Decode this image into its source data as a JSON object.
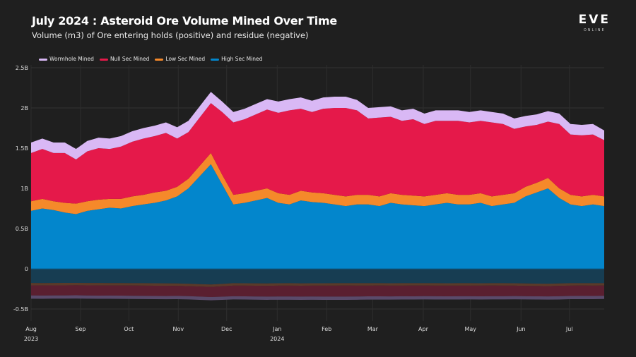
{
  "header": {
    "title": "July 2024 : Asteroid Ore Volume Mined Over Time",
    "subtitle": "Volume (m3) of Ore entering holds (positive) and residue (negative)",
    "logo_text": "EVE",
    "logo_subtext": "ONLINE"
  },
  "colors": {
    "wormhole": "#d9b8f5",
    "null": "#e5194a",
    "low": "#f5892a",
    "high": "#0386cc",
    "background": "#1f1f1f"
  },
  "chart_data": {
    "type": "area",
    "title": "July 2024 : Asteroid Ore Volume Mined Over Time",
    "xlabel": "",
    "ylabel": "Volume (m3)",
    "ylim": [
      -0.7,
      2.55
    ],
    "yticks": [
      {
        "v": 2.5,
        "label": "2.5B"
      },
      {
        "v": 2,
        "label": "2B"
      },
      {
        "v": 1.5,
        "label": "1.5B"
      },
      {
        "v": 1,
        "label": "1B"
      },
      {
        "v": 0.5,
        "label": "0.5B"
      },
      {
        "v": 0,
        "label": "0"
      },
      {
        "v": -0.5,
        "label": "-0.5B"
      }
    ],
    "xticks": [
      {
        "week": 0,
        "label": "Aug",
        "sub": "2023"
      },
      {
        "week": 4.4,
        "label": "Sep",
        "sub": ""
      },
      {
        "week": 8.7,
        "label": "Oct",
        "sub": ""
      },
      {
        "week": 13.1,
        "label": "Nov",
        "sub": ""
      },
      {
        "week": 17.4,
        "label": "Dec",
        "sub": ""
      },
      {
        "week": 21.9,
        "label": "Jan",
        "sub": "2024"
      },
      {
        "week": 26.3,
        "label": "Feb",
        "sub": ""
      },
      {
        "week": 30.4,
        "label": "Mar",
        "sub": ""
      },
      {
        "week": 34.9,
        "label": "Apr",
        "sub": ""
      },
      {
        "week": 39.1,
        "label": "May",
        "sub": ""
      },
      {
        "week": 43.6,
        "label": "Jun",
        "sub": ""
      },
      {
        "week": 47.9,
        "label": "Jul",
        "sub": ""
      }
    ],
    "x_unit": "weeks since 2023-08-01",
    "legend": {
      "placement": "top-left",
      "entries": [
        "Wormhole Mined",
        "Null Sec Mined",
        "Low Sec Mined",
        "High Sec Mined"
      ]
    },
    "series": [
      {
        "name": "High Sec Mined",
        "key": "high",
        "values": [
          0.72,
          0.75,
          0.73,
          0.7,
          0.68,
          0.72,
          0.74,
          0.76,
          0.75,
          0.78,
          0.8,
          0.82,
          0.85,
          0.9,
          1.0,
          1.15,
          1.3,
          1.05,
          0.8,
          0.82,
          0.85,
          0.88,
          0.82,
          0.8,
          0.85,
          0.83,
          0.82,
          0.8,
          0.78,
          0.8,
          0.8,
          0.78,
          0.82,
          0.8,
          0.79,
          0.78,
          0.8,
          0.82,
          0.8,
          0.8,
          0.82,
          0.78,
          0.8,
          0.82,
          0.9,
          0.95,
          1.0,
          0.88,
          0.8,
          0.78,
          0.8,
          0.78
        ],
        "residue": -0.18
      },
      {
        "name": "Low Sec Mined",
        "key": "low",
        "values": [
          0.12,
          0.12,
          0.11,
          0.12,
          0.13,
          0.12,
          0.12,
          0.11,
          0.12,
          0.12,
          0.12,
          0.13,
          0.12,
          0.12,
          0.12,
          0.13,
          0.14,
          0.12,
          0.12,
          0.12,
          0.12,
          0.12,
          0.12,
          0.12,
          0.12,
          0.12,
          0.12,
          0.12,
          0.12,
          0.12,
          0.12,
          0.12,
          0.12,
          0.12,
          0.12,
          0.12,
          0.12,
          0.12,
          0.12,
          0.12,
          0.12,
          0.12,
          0.12,
          0.12,
          0.12,
          0.12,
          0.13,
          0.12,
          0.12,
          0.12,
          0.12,
          0.12
        ],
        "residue": -0.03
      },
      {
        "name": "Null Sec Mined",
        "key": "null",
        "values": [
          0.6,
          0.62,
          0.6,
          0.62,
          0.55,
          0.62,
          0.64,
          0.62,
          0.65,
          0.68,
          0.7,
          0.7,
          0.72,
          0.6,
          0.58,
          0.6,
          0.62,
          0.78,
          0.9,
          0.92,
          0.95,
          0.98,
          1.0,
          1.05,
          1.02,
          1.0,
          1.05,
          1.08,
          1.1,
          1.05,
          0.95,
          0.98,
          0.95,
          0.92,
          0.95,
          0.9,
          0.92,
          0.9,
          0.92,
          0.9,
          0.9,
          0.92,
          0.88,
          0.8,
          0.75,
          0.72,
          0.7,
          0.8,
          0.75,
          0.76,
          0.75,
          0.7
        ],
        "residue": -0.13
      },
      {
        "name": "Wormhole Mined",
        "key": "wormhole",
        "values": [
          0.13,
          0.13,
          0.13,
          0.13,
          0.13,
          0.13,
          0.13,
          0.13,
          0.13,
          0.13,
          0.13,
          0.13,
          0.13,
          0.14,
          0.14,
          0.14,
          0.14,
          0.13,
          0.13,
          0.13,
          0.13,
          0.13,
          0.14,
          0.14,
          0.14,
          0.14,
          0.14,
          0.14,
          0.14,
          0.13,
          0.13,
          0.13,
          0.13,
          0.13,
          0.13,
          0.13,
          0.13,
          0.13,
          0.13,
          0.13,
          0.13,
          0.13,
          0.13,
          0.13,
          0.13,
          0.13,
          0.13,
          0.13,
          0.13,
          0.13,
          0.13,
          0.12
        ],
        "residue": -0.04
      }
    ]
  }
}
